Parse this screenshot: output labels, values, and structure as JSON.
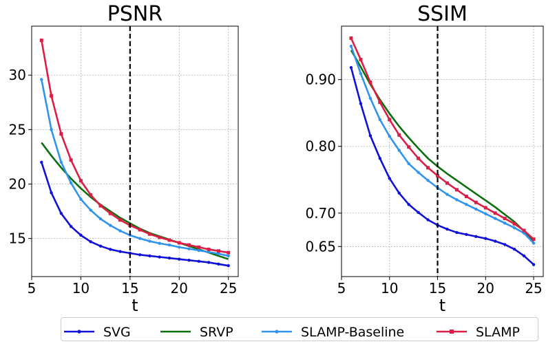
{
  "chart_data": [
    {
      "type": "line",
      "title": "PSNR",
      "xlabel": "t",
      "ylabel": "",
      "xlim": [
        5,
        26
      ],
      "ylim": [
        11.5,
        34.5
      ],
      "xticks": [
        5,
        10,
        15,
        20,
        25
      ],
      "yticks": [
        15,
        20,
        25,
        30
      ],
      "grid": true,
      "vline": 15,
      "x": [
        6,
        7,
        8,
        9,
        10,
        11,
        12,
        13,
        14,
        15,
        16,
        17,
        18,
        19,
        20,
        21,
        22,
        23,
        24,
        25
      ],
      "series": [
        {
          "name": "SVG",
          "color": "#1010d8",
          "marker": "dot",
          "values": [
            22.0,
            19.2,
            17.3,
            16.1,
            15.3,
            14.7,
            14.3,
            14.0,
            13.8,
            13.65,
            13.5,
            13.4,
            13.3,
            13.2,
            13.1,
            13.0,
            12.9,
            12.8,
            12.65,
            12.5
          ]
        },
        {
          "name": "SRVP",
          "color": "#0d6e0d",
          "marker": "none",
          "values": [
            23.8,
            22.6,
            21.5,
            20.5,
            19.6,
            18.8,
            18.1,
            17.5,
            16.9,
            16.4,
            15.9,
            15.5,
            15.2,
            14.9,
            14.6,
            14.3,
            14.0,
            13.7,
            13.4,
            13.1
          ]
        },
        {
          "name": "SLAMP-Baseline",
          "color": "#2e94ee",
          "marker": "dot",
          "values": [
            29.6,
            25.0,
            22.0,
            20.1,
            18.6,
            17.6,
            16.8,
            16.2,
            15.7,
            15.3,
            15.0,
            14.75,
            14.55,
            14.4,
            14.2,
            14.05,
            13.9,
            13.75,
            13.6,
            13.4
          ]
        },
        {
          "name": "SLAMP",
          "color": "#dc1e46",
          "marker": "square",
          "values": [
            33.2,
            28.1,
            24.6,
            22.2,
            20.3,
            19.0,
            18.0,
            17.3,
            16.7,
            16.2,
            15.8,
            15.4,
            15.1,
            14.85,
            14.6,
            14.4,
            14.2,
            14.0,
            13.85,
            13.7
          ]
        }
      ]
    },
    {
      "type": "line",
      "title": "SSIM",
      "xlabel": "t",
      "ylabel": "",
      "xlim": [
        5,
        26
      ],
      "ylim": [
        0.605,
        0.98
      ],
      "xticks": [
        5,
        10,
        15,
        20,
        25
      ],
      "yticks": [
        0.65,
        0.7,
        0.8,
        0.9
      ],
      "ytick_labels": [
        "0.65",
        "0.70",
        "0.80",
        "0.90"
      ],
      "grid": true,
      "vline": 15,
      "x": [
        6,
        7,
        8,
        9,
        10,
        11,
        12,
        13,
        14,
        15,
        16,
        17,
        18,
        19,
        20,
        21,
        22,
        23,
        24,
        25
      ],
      "series": [
        {
          "name": "SVG",
          "color": "#1010d8",
          "marker": "dot",
          "values": [
            0.918,
            0.864,
            0.816,
            0.782,
            0.752,
            0.73,
            0.713,
            0.701,
            0.69,
            0.682,
            0.676,
            0.671,
            0.668,
            0.665,
            0.662,
            0.658,
            0.653,
            0.646,
            0.636,
            0.623
          ]
        },
        {
          "name": "SRVP",
          "color": "#0d6e0d",
          "marker": "none",
          "values": [
            0.944,
            0.919,
            0.893,
            0.87,
            0.849,
            0.83,
            0.813,
            0.797,
            0.782,
            0.77,
            0.759,
            0.749,
            0.739,
            0.729,
            0.719,
            0.709,
            0.698,
            0.687,
            0.673,
            0.658
          ]
        },
        {
          "name": "SLAMP-Baseline",
          "color": "#2e94ee",
          "marker": "dot",
          "values": [
            0.95,
            0.909,
            0.872,
            0.84,
            0.815,
            0.794,
            0.774,
            0.761,
            0.749,
            0.738,
            0.728,
            0.72,
            0.713,
            0.706,
            0.699,
            0.692,
            0.685,
            0.678,
            0.67,
            0.655
          ]
        },
        {
          "name": "SLAMP",
          "color": "#dc1e46",
          "marker": "square",
          "values": [
            0.962,
            0.93,
            0.896,
            0.866,
            0.84,
            0.817,
            0.799,
            0.782,
            0.768,
            0.756,
            0.745,
            0.735,
            0.725,
            0.716,
            0.708,
            0.7,
            0.692,
            0.684,
            0.674,
            0.661
          ]
        }
      ]
    }
  ],
  "legend": {
    "items": [
      {
        "label": "SVG",
        "color": "#1010d8",
        "marker": "dot"
      },
      {
        "label": "SRVP",
        "color": "#0d6e0d",
        "marker": "none"
      },
      {
        "label": "SLAMP-Baseline",
        "color": "#2e94ee",
        "marker": "dot"
      },
      {
        "label": "SLAMP",
        "color": "#dc1e46",
        "marker": "square"
      }
    ]
  }
}
